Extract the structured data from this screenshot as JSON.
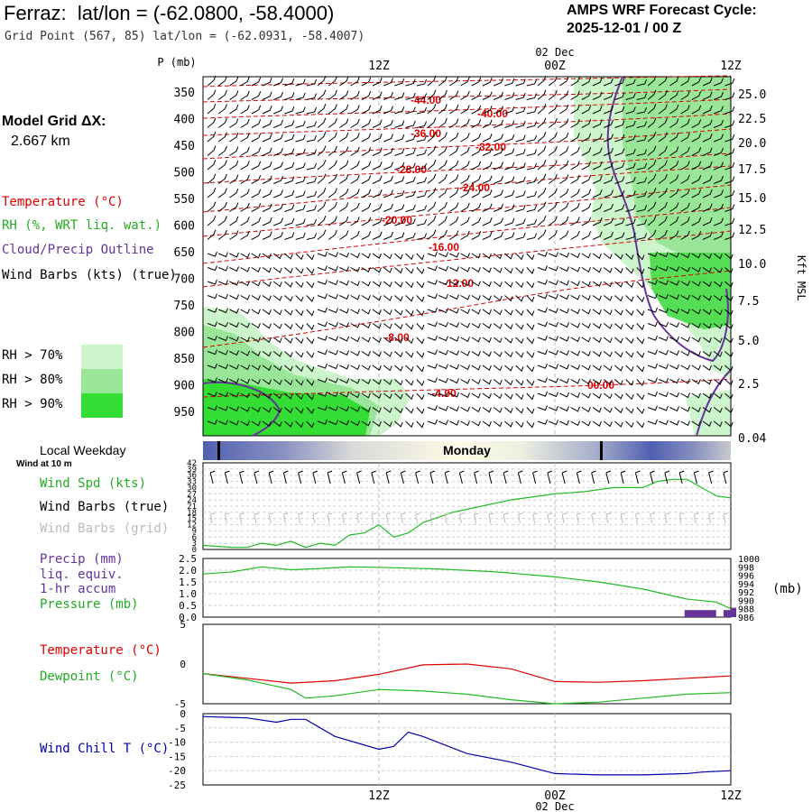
{
  "header": {
    "station": "Ferraz:",
    "latlon_label": "lat/lon = (-62.0800, -58.4000)",
    "grid_point": "Grid Point (567, 85) lat/lon = (-62.0931, -58.4007)",
    "cycle_heading": "AMPS WRF Forecast Cycle:",
    "cycle_value": "2025-12-01 / 00  Z"
  },
  "model_grid": {
    "label": "Model Grid ΔX:",
    "value": "2.667 km"
  },
  "colors": {
    "temperature": "#dd0000",
    "rh": "#22bb22",
    "cloud": "#663399",
    "wind_chill": "#0000aa",
    "rh70": "#ccf5cc",
    "rh80": "#99e699",
    "rh90": "#33dd33",
    "daybar_dark": "#5060b0",
    "daybar_light": "#fdfbe6"
  },
  "legend": {
    "temperature": "Temperature (°C)",
    "rh": "RH (%, WRT liq. wat.)",
    "cloud": "Cloud/Precip Outline",
    "wind": "Wind Barbs (kts) (true)",
    "rh70": "RH > 70%",
    "rh80": "RH > 80%",
    "rh90": "RH > 90%"
  },
  "weekday": {
    "label": "Local Weekday",
    "wind10": "Wind at 10 m",
    "day": "Monday"
  },
  "panel_labels": {
    "wind_spd": "Wind Spd (kts)",
    "wind_barbs_true": "Wind Barbs (true)",
    "wind_barbs_grid": "Wind Barbs (grid)",
    "precip1": "Precip (mm)",
    "precip2": "liq. equiv.",
    "precip3": "1-hr accum",
    "pressure": "Pressure (mb)",
    "pressure_units": "(mb)",
    "temperature": "Temperature (°C)",
    "dewpoint": "Dewpoint (°C)",
    "wind_chill": "Wind Chill T (°C)"
  },
  "chart_data": {
    "type": "line",
    "time_axis": {
      "hours": [
        0,
        3,
        6,
        9,
        12,
        15,
        18,
        21,
        24,
        27,
        30,
        33,
        36
      ],
      "labels": [
        "12Z",
        "00Z",
        "12Z"
      ],
      "label_hours": [
        12,
        24,
        36
      ],
      "date_label": "02 Dec"
    },
    "cross_section": {
      "y_title": "P (mb)",
      "pressure_levels": [
        350,
        400,
        450,
        500,
        550,
        600,
        650,
        700,
        750,
        800,
        850,
        900,
        950
      ],
      "height_axis_title": "Kft MSL",
      "heights_kft": [
        "25.0",
        "22.5",
        "20.0",
        "17.5",
        "15.0",
        "12.5",
        "10.0",
        "7.5",
        "5.0",
        "2.5",
        "0.04"
      ],
      "isotherm_labels": [
        "-44.00",
        "-40.00",
        "-36.00",
        "-32.00",
        "-28.00",
        "-24.00",
        "-20.00",
        "-16.00",
        "-12.00",
        "-8.00",
        "-4.00",
        "00.00"
      ]
    },
    "wind_panel": {
      "yticks": [
        "42",
        "39",
        "36",
        "33",
        "30",
        "27",
        "24",
        "21",
        "18",
        "15",
        "12",
        "9",
        "6",
        "3",
        "0"
      ],
      "ylim": [
        0,
        42
      ],
      "series": [
        {
          "name": "Wind Spd (kts)",
          "x": [
            0,
            1,
            2,
            3,
            4,
            5,
            6,
            7,
            8,
            9,
            10,
            11,
            12,
            13,
            14,
            15,
            17,
            19,
            21,
            23,
            24,
            26,
            28,
            30,
            31,
            32,
            33,
            34,
            35,
            36
          ],
          "values": [
            2,
            1.5,
            1,
            1,
            3,
            2,
            4,
            1,
            3,
            2,
            7,
            8,
            12,
            6,
            8,
            13,
            18,
            21,
            24,
            26,
            27,
            28,
            30,
            30,
            33,
            34,
            34,
            30,
            26,
            25
          ]
        }
      ]
    },
    "pressure_panel": {
      "precip_ticks": [
        "2.5",
        "2.0",
        "1.5",
        "1.0",
        "0.5",
        "0.0"
      ],
      "precip_ylim": [
        0,
        2.5
      ],
      "pressure_ticks": [
        "1000",
        "998",
        "996",
        "994",
        "992",
        "990",
        "988",
        "986"
      ],
      "pressure_ylim": [
        986,
        1000
      ],
      "pressure": {
        "name": "Pressure (mb)",
        "x": [
          0,
          2,
          4,
          6,
          8,
          10,
          12,
          16,
          20,
          24,
          27,
          30,
          33,
          35,
          36
        ],
        "values": [
          996.3,
          996.8,
          998.0,
          997.3,
          997.6,
          998.0,
          997.9,
          997.5,
          996.8,
          995.6,
          994.4,
          992.7,
          990.3,
          989.6,
          988.0
        ]
      },
      "precip": {
        "name": "Precip (mm)",
        "x": [
          35,
          35.5,
          36
        ],
        "values": [
          0.3,
          0.3,
          0.4
        ]
      }
    },
    "temp_panel": {
      "yticks": [
        "5",
        "0",
        "-5"
      ],
      "ylim": [
        -5,
        5
      ],
      "temperature": {
        "name": "Temperature (°C)",
        "x": [
          0,
          3,
          6,
          9,
          12,
          15,
          18,
          21,
          24,
          27,
          30,
          33,
          36
        ],
        "values": [
          -1.2,
          -1.8,
          -2.4,
          -2.1,
          -1.3,
          -0.1,
          0.0,
          -0.6,
          -2.2,
          -2.3,
          -2.1,
          -1.8,
          -1.5
        ]
      },
      "dewpoint": {
        "name": "Dewpoint (°C)",
        "x": [
          0,
          3,
          6,
          7,
          9,
          12,
          15,
          18,
          21,
          24,
          27,
          30,
          33,
          36
        ],
        "values": [
          -1.2,
          -2.0,
          -3.2,
          -4.3,
          -4.0,
          -3.2,
          -3.4,
          -3.8,
          -4.5,
          -5.0,
          -4.8,
          -4.3,
          -3.8,
          -3.6
        ]
      }
    },
    "windchill_panel": {
      "yticks": [
        "0",
        "-5",
        "-10",
        "-15",
        "-20",
        "-25"
      ],
      "ylim": [
        -25,
        0
      ],
      "series": [
        {
          "name": "Wind Chill T (°C)",
          "x": [
            0,
            3,
            5,
            6,
            7,
            9,
            12,
            13,
            14,
            15,
            18,
            21,
            24,
            27,
            30,
            33,
            34,
            36
          ],
          "values": [
            -1.0,
            -1.5,
            -3.0,
            -2.0,
            -2.0,
            -8.0,
            -12.5,
            -11.5,
            -6.5,
            -8.0,
            -14.0,
            -17.0,
            -21.0,
            -21.5,
            -21.5,
            -21.0,
            -20.5,
            -20.0
          ]
        }
      ]
    }
  }
}
